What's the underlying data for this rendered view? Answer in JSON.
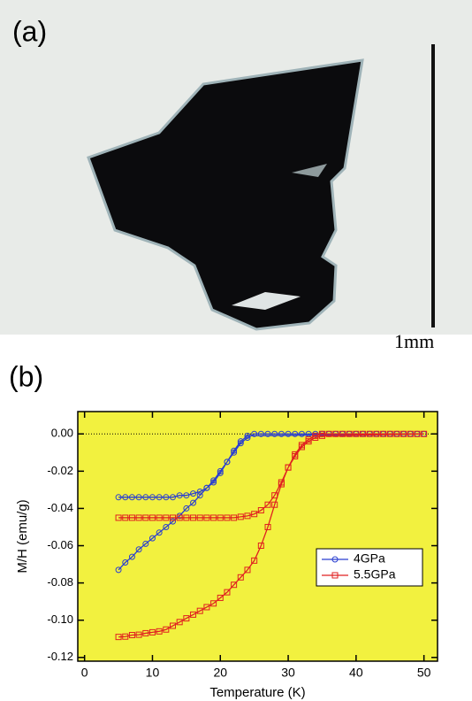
{
  "panel_a": {
    "label": "(a)",
    "scale_bar": "1mm"
  },
  "chart_data": {
    "type": "line",
    "panel_label": "(b)",
    "x_label": "Temperature (K)",
    "y_label": "M/H (emu/g)",
    "xlim": [
      -1,
      52
    ],
    "ylim": [
      -0.122,
      0.012
    ],
    "xticks": [
      0,
      10,
      20,
      30,
      40,
      50
    ],
    "yticks": [
      {
        "value": 0,
        "label": "0.00"
      },
      {
        "value": -0.02,
        "label": "-0.02"
      },
      {
        "value": -0.04,
        "label": "-0.04"
      },
      {
        "value": -0.06,
        "label": "-0.06"
      },
      {
        "value": -0.08,
        "label": "-0.08"
      },
      {
        "value": -0.1,
        "label": "-0.10"
      },
      {
        "value": -0.12,
        "label": "-0.12"
      }
    ],
    "legend": "lower right",
    "series": [
      {
        "name": "4GPa",
        "color": "#2a3fd0",
        "marker": "circle",
        "x": [
          5,
          6,
          7,
          8,
          9,
          10,
          11,
          12,
          13,
          14,
          15,
          16,
          17,
          18,
          19,
          20,
          21,
          22,
          23,
          24,
          25,
          26,
          27,
          28,
          29,
          30,
          31,
          32,
          33,
          34,
          35,
          36,
          37,
          38,
          39,
          40,
          41,
          42,
          43,
          44,
          45,
          46,
          47,
          48,
          49,
          50,
          24,
          23,
          22,
          21,
          20,
          19,
          18,
          17,
          16,
          15,
          14,
          13,
          12,
          11,
          10,
          9,
          8,
          7,
          6,
          5
        ],
        "values": [
          -0.073,
          -0.069,
          -0.066,
          -0.062,
          -0.059,
          -0.056,
          -0.053,
          -0.05,
          -0.047,
          -0.044,
          -0.04,
          -0.037,
          -0.033,
          -0.029,
          -0.025,
          -0.02,
          -0.015,
          -0.01,
          -0.005,
          -0.002,
          0,
          0,
          0,
          0,
          0,
          0,
          0,
          0,
          0,
          0,
          0,
          0,
          0,
          0,
          0,
          0,
          0,
          0,
          0,
          0,
          0,
          0,
          0,
          0,
          0,
          0,
          -0.001,
          -0.004,
          -0.009,
          -0.015,
          -0.021,
          -0.026,
          -0.029,
          -0.031,
          -0.032,
          -0.033,
          -0.033,
          -0.034,
          -0.034,
          -0.034,
          -0.034,
          -0.034,
          -0.034,
          -0.034,
          -0.034,
          -0.034
        ]
      },
      {
        "name": "5.5GPa",
        "color": "#e02020",
        "marker": "square",
        "x": [
          5,
          6,
          7,
          8,
          9,
          10,
          11,
          12,
          13,
          14,
          15,
          16,
          17,
          18,
          19,
          20,
          21,
          22,
          23,
          24,
          25,
          26,
          27,
          28,
          29,
          30,
          31,
          32,
          33,
          34,
          35,
          36,
          37,
          38,
          39,
          40,
          41,
          42,
          43,
          44,
          45,
          46,
          47,
          48,
          49,
          50,
          35,
          34,
          33,
          32,
          31,
          30,
          29,
          28,
          27,
          26,
          25,
          24,
          23,
          22,
          21,
          20,
          19,
          18,
          17,
          16,
          15,
          14,
          13,
          12,
          11,
          10,
          9,
          8,
          7,
          6,
          5
        ],
        "values": [
          -0.109,
          -0.1088,
          -0.108,
          -0.1078,
          -0.107,
          -0.1065,
          -0.106,
          -0.105,
          -0.103,
          -0.101,
          -0.099,
          -0.097,
          -0.095,
          -0.093,
          -0.091,
          -0.088,
          -0.085,
          -0.081,
          -0.077,
          -0.073,
          -0.068,
          -0.06,
          -0.05,
          -0.038,
          -0.027,
          -0.018,
          -0.011,
          -0.006,
          -0.003,
          -0.001,
          0,
          0,
          0,
          0,
          0,
          0,
          0,
          0,
          0,
          0,
          0,
          0,
          0,
          0,
          0,
          0,
          -0.001,
          -0.002,
          -0.004,
          -0.007,
          -0.012,
          -0.018,
          -0.026,
          -0.033,
          -0.038,
          -0.041,
          -0.043,
          -0.044,
          -0.0445,
          -0.045,
          -0.045,
          -0.045,
          -0.045,
          -0.045,
          -0.045,
          -0.045,
          -0.045,
          -0.045,
          -0.045,
          -0.045,
          -0.045,
          -0.045,
          -0.045,
          -0.045,
          -0.045,
          -0.045,
          -0.045
        ]
      }
    ]
  }
}
